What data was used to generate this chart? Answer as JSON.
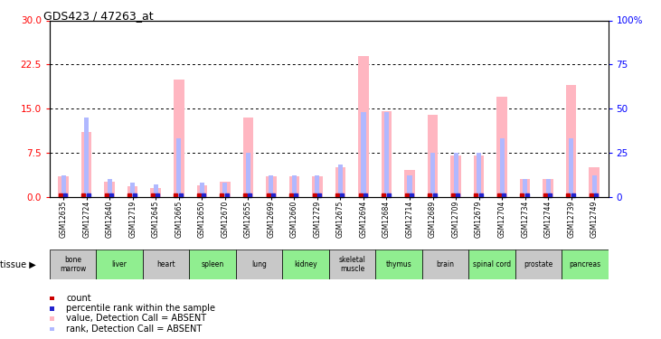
{
  "title": "GDS423 / 47263_at",
  "samples": [
    "GSM12635",
    "GSM12724",
    "GSM12640",
    "GSM12719",
    "GSM12645",
    "GSM12665",
    "GSM12650",
    "GSM12670",
    "GSM12655",
    "GSM12699",
    "GSM12660",
    "GSM12729",
    "GSM12675",
    "GSM12694",
    "GSM12684",
    "GSM12714",
    "GSM12689",
    "GSM12709",
    "GSM12679",
    "GSM12704",
    "GSM12734",
    "GSM12744",
    "GSM12739",
    "GSM12749"
  ],
  "pink_values": [
    3.5,
    11.0,
    2.5,
    1.8,
    1.5,
    20.0,
    2.0,
    2.5,
    13.5,
    3.5,
    3.5,
    3.5,
    5.0,
    24.0,
    14.5,
    4.5,
    14.0,
    7.0,
    7.0,
    17.0,
    3.0,
    3.0,
    19.0,
    5.0
  ],
  "blue_values_pct": [
    12,
    45,
    10,
    8,
    7,
    33,
    8,
    8,
    25,
    12,
    12,
    12,
    18,
    48,
    48,
    12,
    25,
    25,
    25,
    33,
    10,
    10,
    33,
    12
  ],
  "tissues": [
    {
      "name": "bone\nmarrow",
      "start": 0,
      "end": 2,
      "color": "#c8c8c8"
    },
    {
      "name": "liver",
      "start": 2,
      "end": 4,
      "color": "#90ee90"
    },
    {
      "name": "heart",
      "start": 4,
      "end": 6,
      "color": "#c8c8c8"
    },
    {
      "name": "spleen",
      "start": 6,
      "end": 8,
      "color": "#90ee90"
    },
    {
      "name": "lung",
      "start": 8,
      "end": 10,
      "color": "#c8c8c8"
    },
    {
      "name": "kidney",
      "start": 10,
      "end": 12,
      "color": "#90ee90"
    },
    {
      "name": "skeletal\nmuscle",
      "start": 12,
      "end": 14,
      "color": "#c8c8c8"
    },
    {
      "name": "thymus",
      "start": 14,
      "end": 16,
      "color": "#90ee90"
    },
    {
      "name": "brain",
      "start": 16,
      "end": 18,
      "color": "#c8c8c8"
    },
    {
      "name": "spinal cord",
      "start": 18,
      "end": 20,
      "color": "#90ee90"
    },
    {
      "name": "prostate",
      "start": 20,
      "end": 22,
      "color": "#c8c8c8"
    },
    {
      "name": "pancreas",
      "start": 22,
      "end": 24,
      "color": "#90ee90"
    }
  ],
  "ylim_left": [
    0,
    30
  ],
  "ylim_right": [
    0,
    100
  ],
  "yticks_left": [
    0,
    7.5,
    15,
    22.5,
    30
  ],
  "yticks_right": [
    0,
    25,
    50,
    75,
    100
  ],
  "pink_color": "#ffb6c1",
  "blue_color": "#b0b8ff",
  "red_color": "#cc0000",
  "dark_blue_color": "#2222cc",
  "legend_items": [
    {
      "color": "#cc0000",
      "label": "count"
    },
    {
      "color": "#2222cc",
      "label": "percentile rank within the sample"
    },
    {
      "color": "#ffb6c1",
      "label": "value, Detection Call = ABSENT"
    },
    {
      "color": "#b0b8ff",
      "label": "rank, Detection Call = ABSENT"
    }
  ]
}
